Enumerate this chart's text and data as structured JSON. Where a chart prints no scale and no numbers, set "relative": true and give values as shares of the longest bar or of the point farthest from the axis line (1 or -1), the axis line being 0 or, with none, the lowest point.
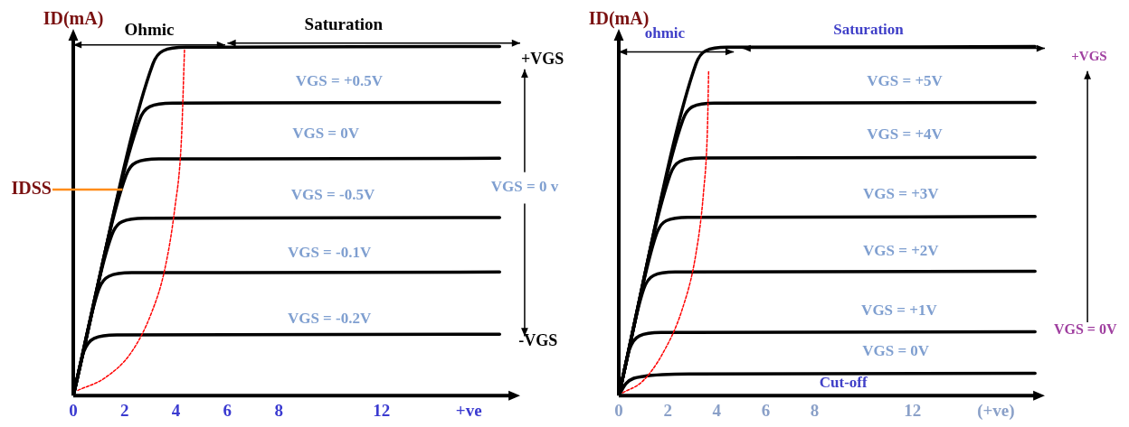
{
  "chart_data": [
    {
      "type": "line",
      "relative": true,
      "ylabel": "ID(mA)",
      "legend": false,
      "grid": false,
      "marker": "none",
      "xlim": [
        0,
        17.4
      ],
      "xticks": [
        0,
        2,
        4,
        6,
        8,
        12,
        {
          "value": 15.4,
          "label": "+ve"
        }
      ],
      "series": [
        {
          "color": "#000000",
          "x": [
            0,
            3.1,
            3.5,
            4.4,
            16.6
          ],
          "values": [
            0,
            0.95,
            0.988,
            0.998,
            1
          ]
        },
        {
          "color": "#000000",
          "x": [
            0,
            2.58,
            2.98,
            3.88,
            16.6
          ],
          "values": [
            0,
            0.79,
            0.828,
            0.838,
            0.84
          ]
        },
        {
          "color": "#000000",
          "x": [
            0,
            2.05,
            2.45,
            3.35,
            16.6
          ],
          "values": [
            0,
            0.63,
            0.668,
            0.678,
            0.68
          ]
        },
        {
          "color": "#000000",
          "x": [
            0,
            1.5,
            1.9,
            2.8,
            16.6
          ],
          "values": [
            0,
            0.46,
            0.498,
            0.508,
            0.51
          ]
        },
        {
          "color": "#000000",
          "x": [
            0,
            0.99,
            1.39,
            2.29,
            16.6
          ],
          "values": [
            0,
            0.304,
            0.342,
            0.352,
            0.354
          ]
        },
        {
          "color": "#000000",
          "x": [
            0,
            0.41,
            0.81,
            1.71,
            16.6
          ],
          "values": [
            0,
            0.126,
            0.164,
            0.174,
            0.176
          ]
        },
        {
          "color": "#ff0000",
          "line_style": "dashed",
          "x": [
            0.18,
            1.26,
            2.28,
            3.05,
            3.56,
            3.95,
            4.21,
            4.33
          ],
          "values": [
            0.015,
            0.052,
            0.126,
            0.238,
            0.361,
            0.535,
            0.733,
            0.99
          ]
        }
      ],
      "ref_lines": [
        {
          "axis": "y",
          "value": 0.59,
          "label": "IDSS",
          "color": "#ff8c1a"
        }
      ],
      "annotations": [
        "VGS = +0.5V",
        "VGS = 0V",
        "VGS = -0.5V",
        "VGS = -0.1V",
        "VGS = -0.2V",
        "VGS = 0 v",
        "+VGS",
        "-VGS",
        "Ohmic",
        "Saturation"
      ]
    },
    {
      "type": "line",
      "relative": true,
      "ylabel": "ID(mA)",
      "legend": false,
      "grid": false,
      "marker": "none",
      "xlim": [
        0,
        17.4
      ],
      "xticks": [
        0,
        2,
        4,
        6,
        8,
        12,
        {
          "value": 15.4,
          "label": "(+ve)"
        }
      ],
      "series": [
        {
          "color": "#000000",
          "x": [
            0,
            3.15,
            3.55,
            4.45,
            17
          ],
          "values": [
            0,
            0.95,
            0.988,
            0.998,
            1
          ]
        },
        {
          "color": "#000000",
          "x": [
            0,
            2.62,
            3.02,
            3.92,
            17
          ],
          "values": [
            0,
            0.79,
            0.828,
            0.838,
            0.84
          ]
        },
        {
          "color": "#000000",
          "x": [
            0,
            2.1,
            2.5,
            3.4,
            17
          ],
          "values": [
            0,
            0.633,
            0.671,
            0.681,
            0.683
          ]
        },
        {
          "color": "#000000",
          "x": [
            0,
            1.54,
            1.94,
            2.84,
            17
          ],
          "values": [
            0,
            0.463,
            0.501,
            0.511,
            0.513
          ]
        },
        {
          "color": "#000000",
          "x": [
            0,
            1.02,
            1.42,
            2.32,
            17
          ],
          "values": [
            0,
            0.306,
            0.344,
            0.354,
            0.356
          ]
        },
        {
          "color": "#000000",
          "x": [
            0,
            0.44,
            0.84,
            1.74,
            17
          ],
          "values": [
            0,
            0.133,
            0.171,
            0.181,
            0.183
          ]
        },
        {
          "color": "#000000",
          "x": [
            0,
            0.3,
            1,
            3,
            17
          ],
          "values": [
            0,
            0.035,
            0.055,
            0.062,
            0.064
          ]
        },
        {
          "color": "#ff0000",
          "line_style": "dashed",
          "x": [
            0.16,
            0.97,
            1.78,
            2.59,
            3.14,
            3.46,
            3.62,
            3.67
          ],
          "values": [
            0.008,
            0.041,
            0.119,
            0.247,
            0.402,
            0.582,
            0.763,
            0.93
          ]
        }
      ],
      "annotations": [
        "VGS = +5V",
        "VGS = +4V",
        "VGS = +3V",
        "VGS = +2V",
        "VGS = +1V",
        "VGS = 0V",
        "Cut-off",
        "+VGS",
        "VGS = 0V",
        "ohmic",
        "Saturation"
      ]
    }
  ]
}
